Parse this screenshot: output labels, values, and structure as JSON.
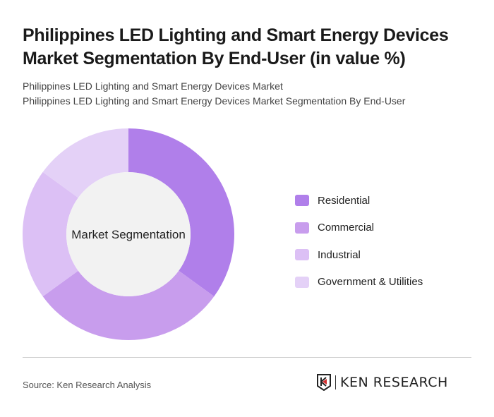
{
  "header": {
    "title": "Philippines LED Lighting and Smart Energy Devices Market Segmentation By End-User (in value %)",
    "subtitle1": "Philippines LED Lighting and Smart Energy Devices Market",
    "subtitle2": "Philippines LED Lighting and Smart Energy Devices Market Segmentation By End-User"
  },
  "chart_data": {
    "type": "pie",
    "donut": true,
    "center_label": "Market Segmentation",
    "categories": [
      "Residential",
      "Commercial",
      "Industrial",
      "Government & Utilities"
    ],
    "values": [
      35,
      30,
      20,
      15
    ],
    "colors": [
      "#b07fea",
      "#c89ded",
      "#dcc0f5",
      "#e4d1f7"
    ],
    "legend_position": "right"
  },
  "footer": {
    "source": "Source: Ken Research Analysis",
    "logo": "KEN RESEARCH"
  }
}
